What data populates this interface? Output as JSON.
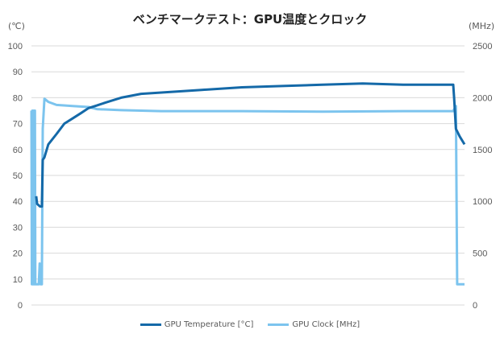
{
  "chart_data": {
    "type": "line",
    "title": "ベンチマークテスト：GPU温度とクロック",
    "ylabel": "(℃)",
    "y2label": "(MHz)",
    "ylim": [
      0,
      100
    ],
    "y2lim": [
      0,
      2500
    ],
    "yticks": [
      "0",
      "10",
      "20",
      "30",
      "40",
      "50",
      "60",
      "70",
      "80",
      "90",
      "100"
    ],
    "y2ticks": [
      "0",
      "500",
      "1000",
      "1500",
      "2000",
      "2500"
    ],
    "xlabel": "",
    "x_unit": "percent of run time",
    "grid": true,
    "legend_position": "bottom",
    "series": [
      {
        "name": "GPU Temperature [°C]",
        "axis": "left",
        "color": "#1469A8",
        "x": [
          1.1,
          1.3,
          2.0,
          2.4,
          2.6,
          3.0,
          3.9,
          5.8,
          7.6,
          9.5,
          11.4,
          13.2,
          15.1,
          16.9,
          20.7,
          25.3,
          30.0,
          39.3,
          48.6,
          57.9,
          67.2,
          76.5,
          85.8,
          97.4,
          97.6,
          98.0,
          98.9,
          100
        ],
        "y": [
          42,
          39,
          38,
          38,
          56,
          57,
          62,
          66,
          70,
          72,
          74,
          76,
          77,
          78,
          80,
          81.5,
          82,
          83,
          84,
          84.5,
          85,
          85.5,
          85,
          85,
          80,
          68,
          65,
          62
        ]
      },
      {
        "name": "GPU Clock [MHz]",
        "axis": "right",
        "color": "#7CC4EE",
        "x": [
          0,
          0.1,
          0.2,
          0.3,
          0.4,
          0.5,
          0.6,
          0.7,
          0.8,
          0.9,
          1.1,
          1.7,
          1.9,
          2.1,
          2.4,
          2.6,
          3.0,
          3.9,
          5.8,
          9.5,
          13.2,
          15.1,
          20.7,
          30.0,
          48.6,
          67.2,
          85.8,
          97.4,
          98.0,
          98.3,
          98.5,
          100
        ],
        "y": [
          1875,
          200,
          1875,
          200,
          1875,
          200,
          1875,
          200,
          1875,
          200,
          200,
          200,
          400,
          200,
          200,
          1700,
          1990,
          1960,
          1930,
          1920,
          1910,
          1890,
          1880,
          1870,
          1870,
          1865,
          1870,
          1870,
          1920,
          200,
          200,
          200
        ]
      }
    ]
  }
}
